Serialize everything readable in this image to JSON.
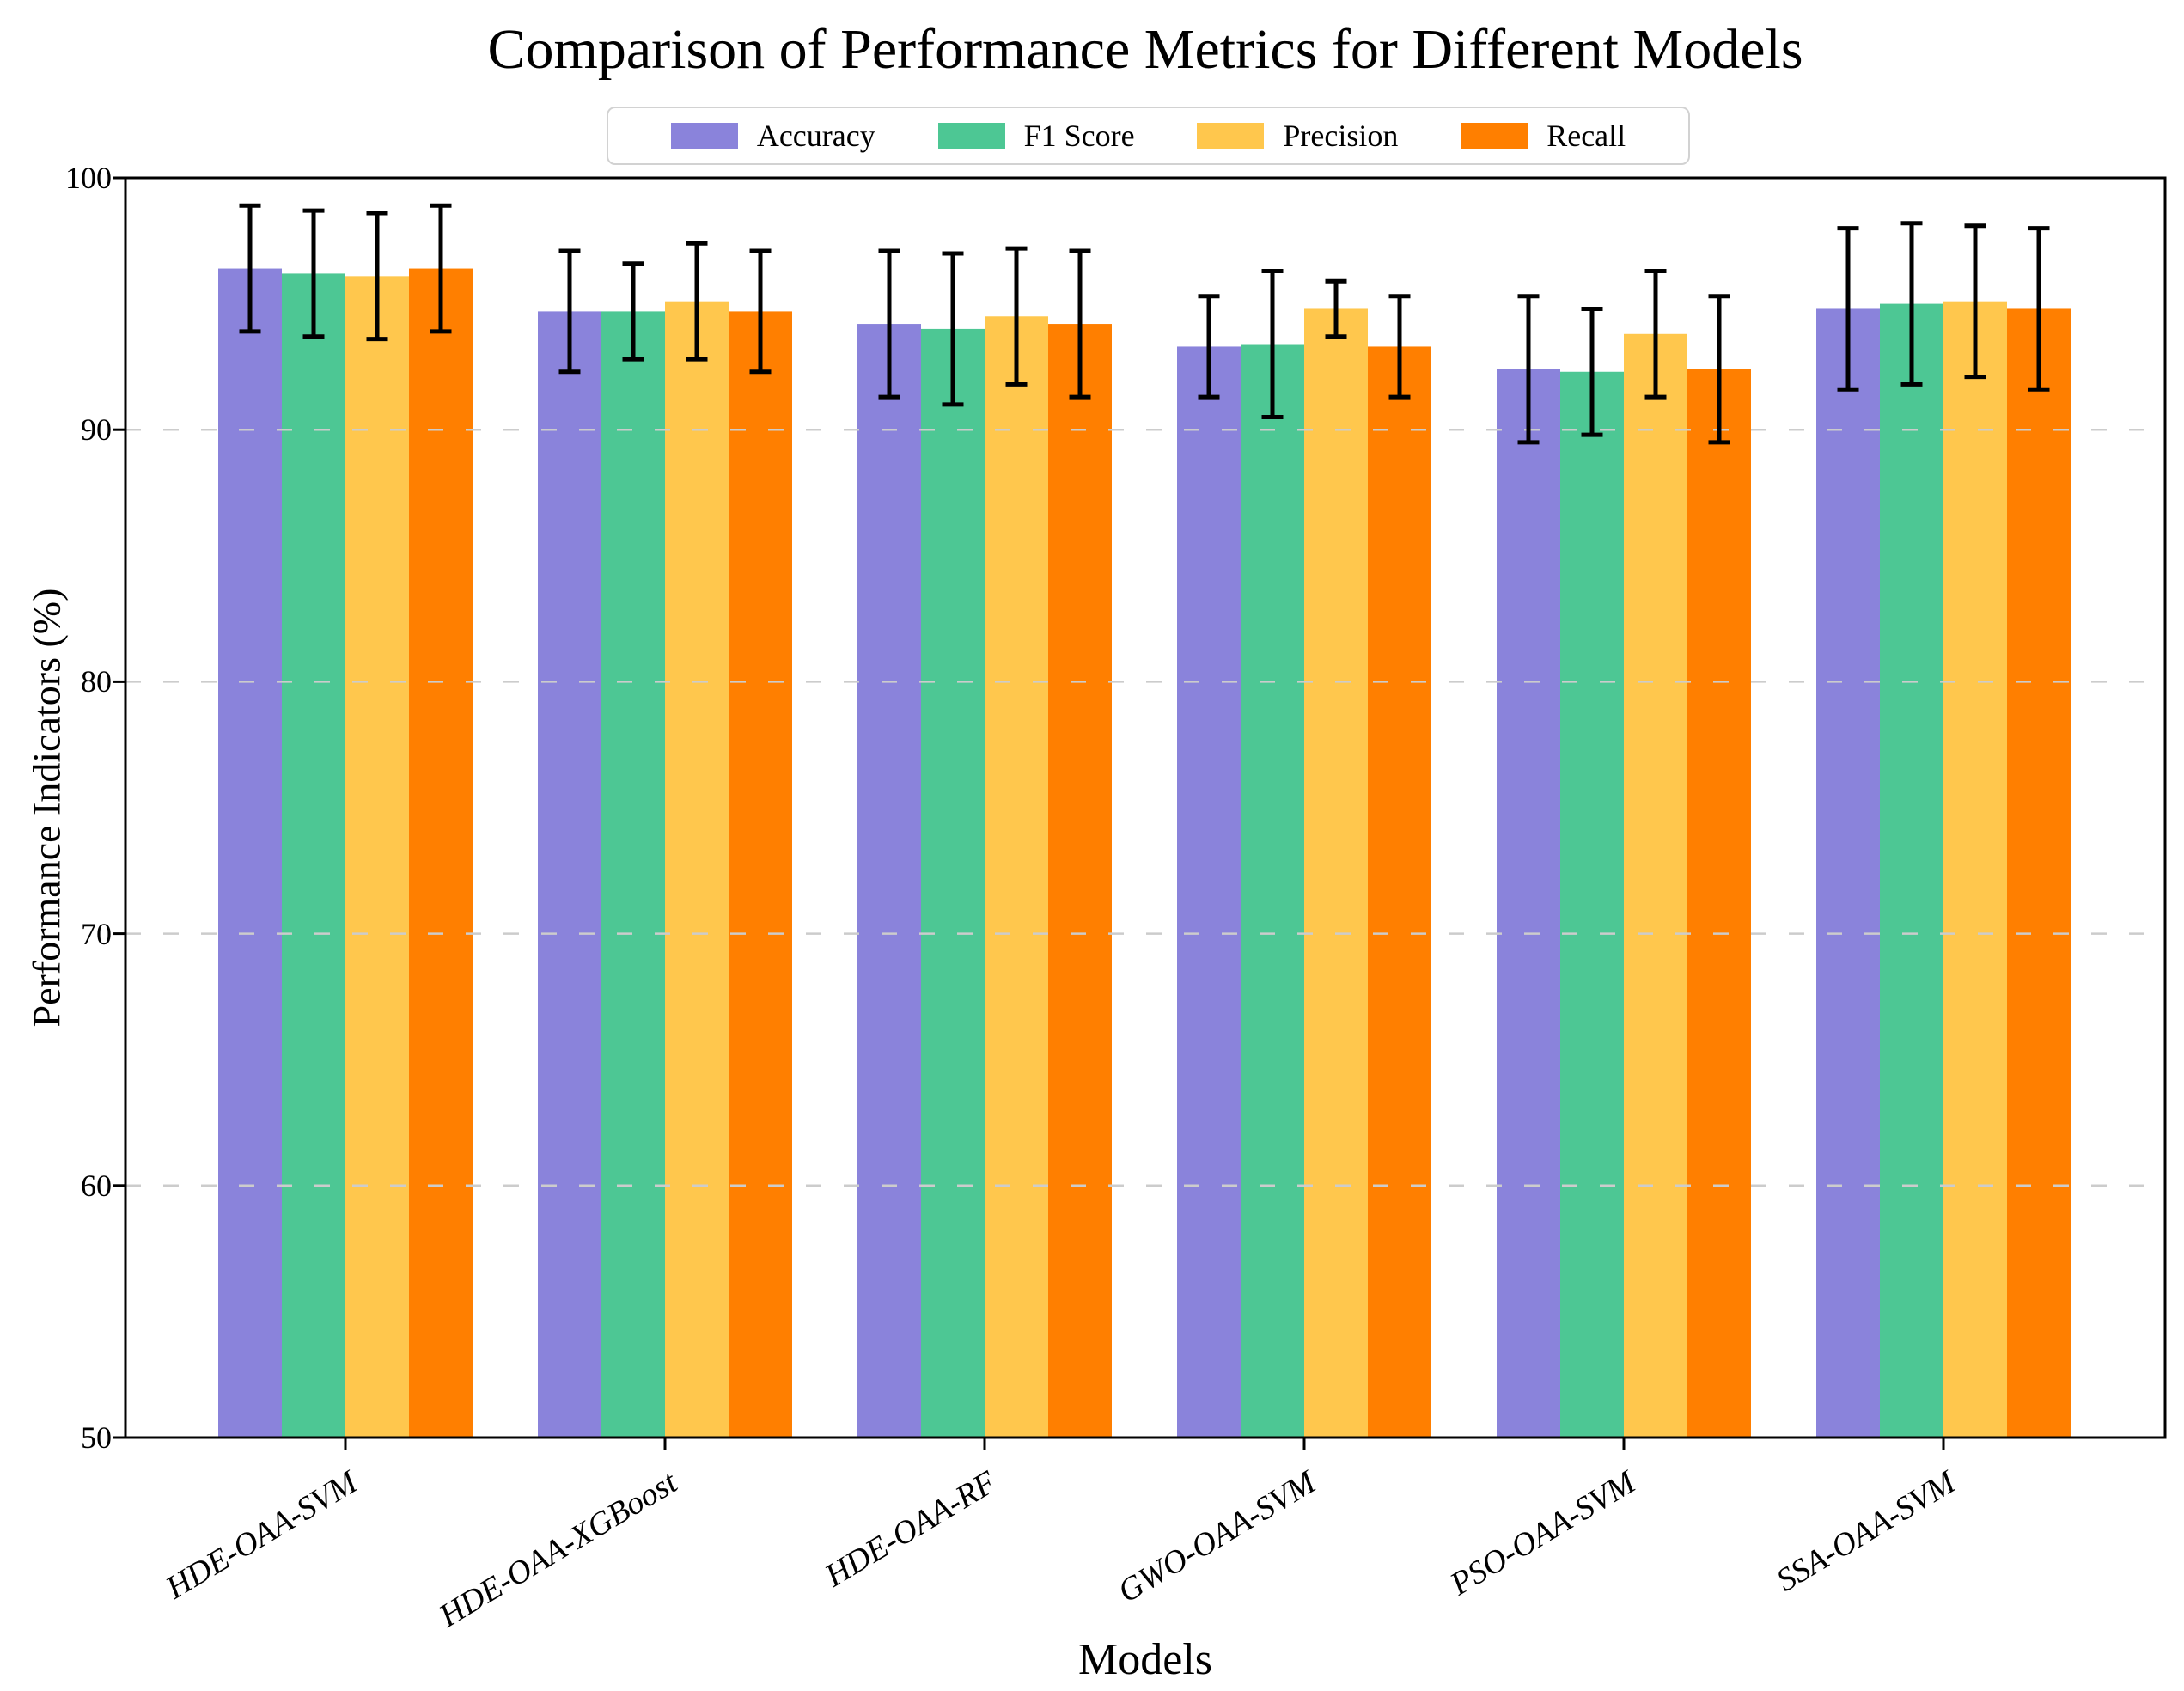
{
  "chart_data": {
    "type": "bar",
    "title": "Comparison of Performance Metrics for Different Models",
    "xlabel": "Models",
    "ylabel": "Performance Indicators (%)",
    "ylim": [
      50,
      100
    ],
    "yticks": [
      50,
      60,
      70,
      80,
      90,
      100
    ],
    "grid": "horizontal dashed gridlines at y ticks, drawn over bars",
    "grid_color": "#cccccc",
    "legend_position": "top center, horizontal, framed box",
    "error_bar_color": "#000000",
    "categories": [
      "HDE-OAA-SVM",
      "HDE-OAA-XGBoost",
      "HDE-OAA-RF",
      "GWO-OAA-SVM",
      "PSO-OAA-SVM",
      "SSA-OAA-SVM"
    ],
    "series": [
      {
        "name": "Accuracy",
        "color": "#8A83DB",
        "values": [
          96.4,
          94.7,
          94.2,
          93.3,
          92.4,
          94.8
        ],
        "errors": [
          2.5,
          2.4,
          2.9,
          2.0,
          2.9,
          3.2
        ]
      },
      {
        "name": "F1 Score",
        "color": "#4DC794",
        "values": [
          96.2,
          94.7,
          94.0,
          93.4,
          92.3,
          95.0
        ],
        "errors": [
          2.5,
          1.9,
          3.0,
          2.9,
          2.5,
          3.2
        ]
      },
      {
        "name": "Precision",
        "color": "#FFC74D",
        "values": [
          96.1,
          95.1,
          94.5,
          94.8,
          93.8,
          95.1
        ],
        "errors": [
          2.5,
          2.3,
          2.7,
          1.1,
          2.5,
          3.0
        ]
      },
      {
        "name": "Recall",
        "color": "#FF7F00",
        "values": [
          96.4,
          94.7,
          94.2,
          93.3,
          92.4,
          94.8
        ],
        "errors": [
          2.5,
          2.4,
          2.9,
          2.0,
          2.9,
          3.2
        ]
      }
    ]
  }
}
